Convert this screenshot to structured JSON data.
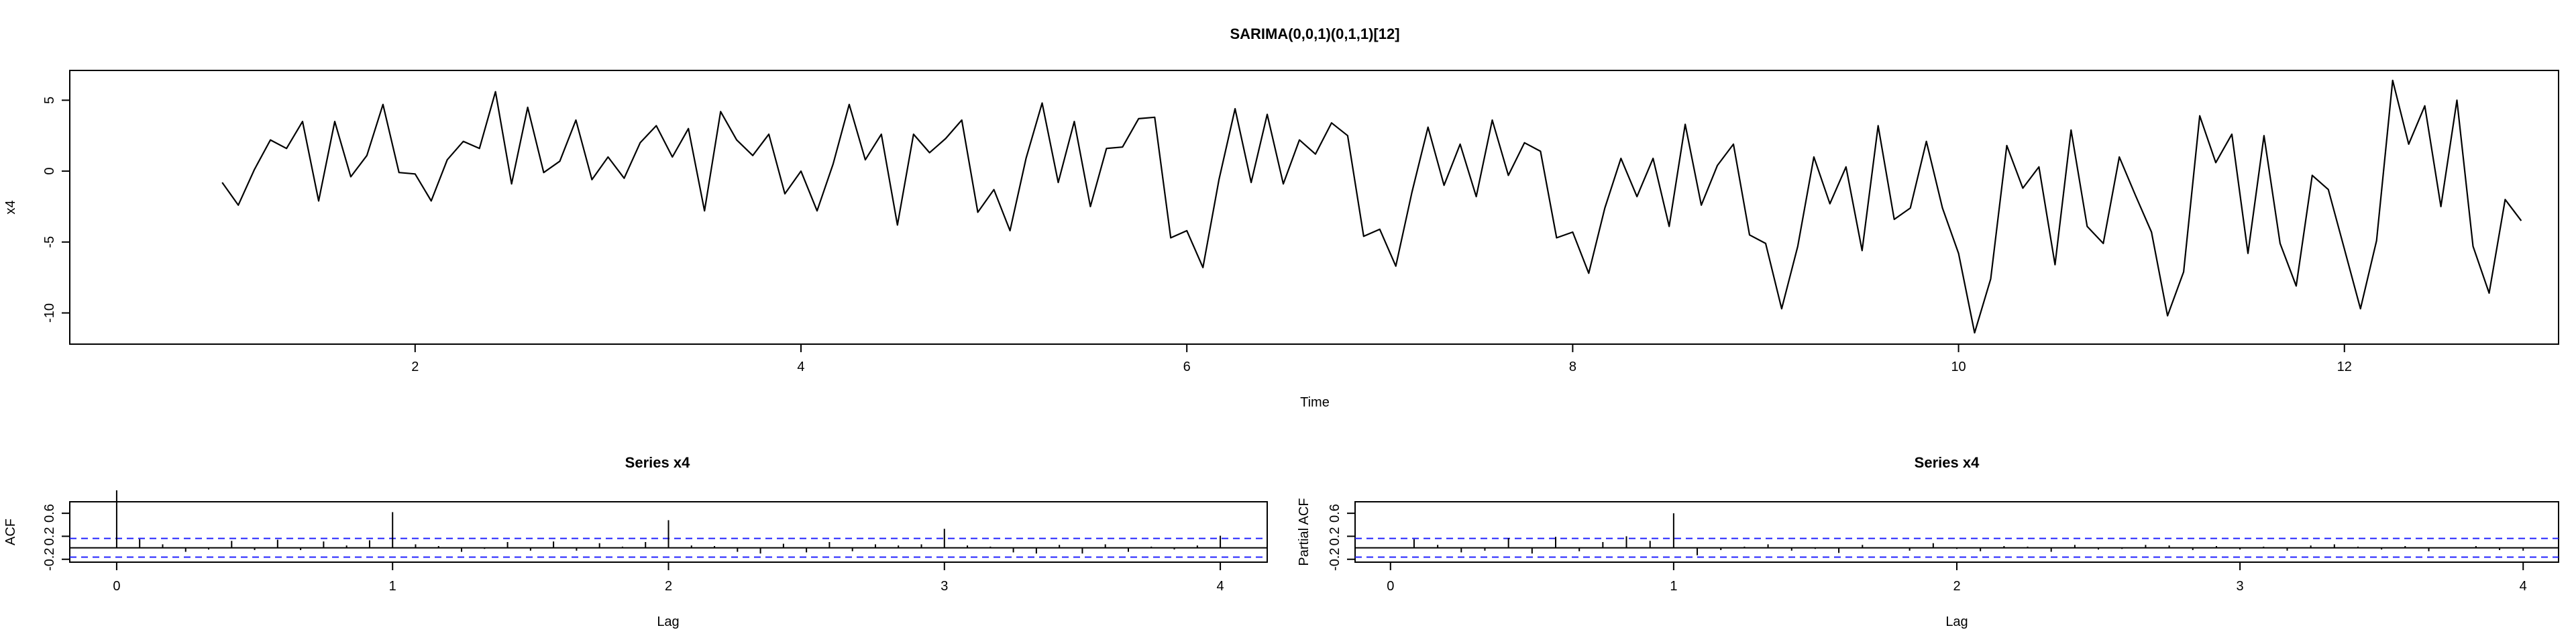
{
  "chart_data": [
    {
      "type": "line",
      "title": "SARIMA(0,0,1)(0,1,1)[12]",
      "xlabel": "Time",
      "ylabel": "x4",
      "xlim": [
        0.21,
        13.11
      ],
      "ylim": [
        -12.2,
        7.1
      ],
      "xticks": [
        "2",
        "4",
        "6",
        "8",
        "10",
        "12"
      ],
      "yticks": [
        "5",
        "0",
        "-5",
        "-10"
      ],
      "x_start": 1,
      "frequency": 12,
      "values": [
        -0.8,
        -2.4,
        0.1,
        2.2,
        1.6,
        3.5,
        -2.1,
        3.5,
        -0.4,
        1.1,
        4.7,
        -0.1,
        -0.2,
        -2.1,
        0.8,
        2.1,
        1.6,
        5.6,
        -0.9,
        4.5,
        -0.1,
        0.7,
        3.6,
        -0.6,
        1.0,
        -0.5,
        2.0,
        3.2,
        1.0,
        3.0,
        -2.8,
        4.2,
        2.2,
        1.1,
        2.6,
        -1.6,
        0.0,
        -2.8,
        0.5,
        4.7,
        0.8,
        2.6,
        -3.8,
        2.6,
        1.3,
        2.3,
        3.6,
        -2.9,
        -1.3,
        -4.2,
        0.9,
        4.8,
        -0.8,
        3.5,
        -2.5,
        1.6,
        1.7,
        3.7,
        3.8,
        -4.7,
        -4.2,
        -6.8,
        -0.6,
        4.4,
        -0.8,
        4.0,
        -0.9,
        2.2,
        1.2,
        3.4,
        2.5,
        -4.6,
        -4.1,
        -6.7,
        -1.5,
        3.1,
        -1.0,
        1.9,
        -1.8,
        3.6,
        -0.3,
        2.0,
        1.4,
        -4.7,
        -4.3,
        -7.2,
        -2.6,
        0.9,
        -1.8,
        0.9,
        -3.9,
        3.3,
        -2.4,
        0.4,
        1.9,
        -4.5,
        -5.1,
        -9.7,
        -5.3,
        1.0,
        -2.3,
        0.3,
        -5.6,
        3.2,
        -3.4,
        -2.6,
        2.1,
        -2.6,
        -5.8,
        -11.4,
        -7.6,
        1.8,
        -1.2,
        0.3,
        -6.6,
        2.9,
        -3.9,
        -5.1,
        1.0,
        -1.7,
        -4.3,
        -10.2,
        -7.1,
        3.9,
        0.6,
        2.6,
        -5.8,
        2.5,
        -5.1,
        -8.1,
        -0.3,
        -1.3,
        -5.5,
        -9.7,
        -4.9,
        6.4,
        1.9,
        4.6,
        -2.5,
        5.0,
        -5.3,
        -8.6,
        -2.0,
        -3.5
      ]
    },
    {
      "type": "bar",
      "title": "Series  x4",
      "xlabel": "Lag",
      "ylabel": "ACF",
      "xlim": [
        -0.17,
        4.17
      ],
      "ylim": [
        -0.25,
        0.8
      ],
      "xticks": [
        "0",
        "1",
        "2",
        "3",
        "4"
      ],
      "yticks": [
        "-0.2",
        "0.2",
        "0.6"
      ],
      "ci": 0.163,
      "lags": [
        0,
        0.0833,
        0.1667,
        0.25,
        0.3333,
        0.4167,
        0.5,
        0.5833,
        0.6667,
        0.75,
        0.8333,
        0.9167,
        1,
        1.0833,
        1.1667,
        1.25,
        1.3333,
        1.4167,
        1.5,
        1.5833,
        1.6667,
        1.75,
        1.8333,
        1.9167,
        2,
        2.0833,
        2.1667,
        2.25,
        2.3333,
        2.4167,
        2.5,
        2.5833,
        2.6667,
        2.75,
        2.8333,
        2.9167,
        3,
        3.0833,
        3.1667,
        3.25,
        3.3333,
        3.4167,
        3.5,
        3.5833,
        3.6667,
        3.75,
        3.8333,
        3.9167,
        4
      ],
      "values": [
        1.0,
        0.15,
        0.06,
        -0.07,
        -0.03,
        0.12,
        -0.04,
        0.14,
        -0.04,
        0.11,
        0.04,
        0.13,
        0.62,
        0.06,
        0.03,
        -0.07,
        -0.02,
        0.1,
        -0.05,
        0.11,
        -0.05,
        0.08,
        0.02,
        0.1,
        0.48,
        0.04,
        0.03,
        -0.07,
        -0.1,
        0.07,
        -0.08,
        0.1,
        -0.06,
        0.06,
        0.04,
        0.06,
        0.33,
        0.04,
        0.02,
        -0.08,
        -0.1,
        0.05,
        -0.1,
        0.06,
        -0.07,
        0.02,
        -0.03,
        0.04,
        0.21
      ]
    },
    {
      "type": "bar",
      "title": "Series  x4",
      "xlabel": "Lag",
      "ylabel": "Partial ACF",
      "xlim": [
        -0.125,
        4.125
      ],
      "ylim": [
        -0.25,
        0.8
      ],
      "xticks": [
        "0",
        "1",
        "2",
        "3",
        "4"
      ],
      "yticks": [
        "-0.2",
        "0.2",
        "0.6"
      ],
      "ci": 0.163,
      "lags": [
        0.0833,
        0.1667,
        0.25,
        0.3333,
        0.4167,
        0.5,
        0.5833,
        0.6667,
        0.75,
        0.8333,
        0.9167,
        1,
        1.0833,
        1.1667,
        1.25,
        1.3333,
        1.4167,
        1.5,
        1.5833,
        1.6667,
        1.75,
        1.8333,
        1.9167,
        2,
        2.0833,
        2.1667,
        2.25,
        2.3333,
        2.4167,
        2.5,
        2.5833,
        2.6667,
        2.75,
        2.8333,
        2.9167,
        3,
        3.0833,
        3.1667,
        3.25,
        3.3333,
        3.4167,
        3.5,
        3.5833,
        3.6667,
        3.75,
        3.8333,
        3.9167,
        4
      ],
      "values": [
        0.15,
        0.05,
        -0.08,
        -0.05,
        0.17,
        -0.1,
        0.19,
        -0.06,
        0.1,
        0.2,
        0.12,
        0.6,
        -0.13,
        -0.04,
        0.02,
        0.06,
        -0.05,
        -0.02,
        -0.09,
        0.05,
        0.0,
        -0.05,
        0.08,
        -0.02,
        -0.06,
        0.03,
        0.02,
        -0.07,
        0.05,
        -0.03,
        -0.02,
        0.05,
        0.04,
        -0.04,
        0.03,
        -0.03,
        0.02,
        -0.05,
        0.04,
        0.06,
        0.02,
        -0.03,
        0.03,
        -0.06,
        0.0,
        0.03,
        -0.04,
        -0.05
      ]
    }
  ],
  "colors": {
    "axis": "#000000",
    "series": "#000000",
    "ci_line": "#2222ff"
  }
}
